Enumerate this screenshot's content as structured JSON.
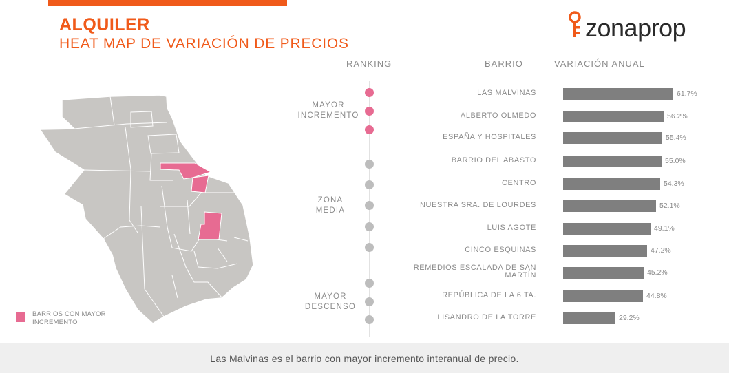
{
  "header": {
    "title": "ALQUILER",
    "subtitle": "HEAT MAP DE VARIACIÓN DE PRECIOS",
    "logo_text": "zonaprop"
  },
  "columns": {
    "ranking": "RANKING",
    "barrio": "BARRIO",
    "variacion": "VARIACIÓN ANUAL"
  },
  "groups": {
    "mayor_incremento": [
      "MAYOR",
      "INCREMENTO"
    ],
    "zona_media": [
      "ZONA",
      "MEDIA"
    ],
    "mayor_descenso": [
      "MAYOR",
      "DESCENSO"
    ]
  },
  "legend": {
    "label_line1": "BARRIOS CON MAYOR",
    "label_line2": "INCREMENTO"
  },
  "footer": {
    "text": "Las Malvinas es el barrio con mayor incremento interanual de precio."
  },
  "colors": {
    "brand_orange": "#f05a1a",
    "highlight_pink": "#e76b92",
    "bar_gray": "#7f7f7f",
    "dot_gray": "#bdbdbd",
    "map_gray": "#c8c6c3"
  },
  "chart_data": {
    "type": "bar",
    "orientation": "horizontal",
    "xlabel": "VARIACIÓN ANUAL",
    "categories": [
      "LAS MALVINAS",
      "ALBERTO OLMEDO",
      "ESPAÑA Y HOSPITALES",
      "BARRIO DEL ABASTO",
      "CENTRO",
      "NUESTRA SRA. DE LOURDES",
      "LUIS AGOTE",
      "CINCO ESQUINAS",
      "REMEDIOS ESCALADA DE SAN MARTÍN",
      "REPÚBLICA DE LA 6 TA.",
      "LISANDRO DE LA TORRE"
    ],
    "values": [
      61.7,
      56.2,
      55.4,
      55.0,
      54.3,
      52.1,
      49.1,
      47.2,
      45.2,
      44.8,
      29.2
    ],
    "value_labels": [
      "61.7%",
      "56.2%",
      "55.4%",
      "55.0%",
      "54.3%",
      "52.1%",
      "49.1%",
      "47.2%",
      "45.2%",
      "44.8%",
      "29.2%"
    ],
    "ranking_dots": [
      "pink",
      "pink",
      "pink",
      "gray",
      "gray",
      "gray",
      "gray",
      "gray",
      "gray",
      "gray",
      "gray"
    ]
  }
}
